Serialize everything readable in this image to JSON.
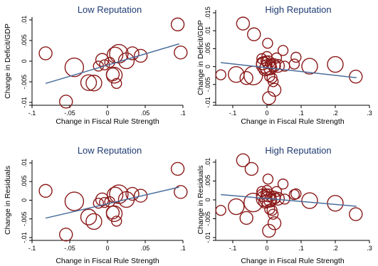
{
  "colors": {
    "title": "#1f3b73",
    "bubble": "#8b1a1a",
    "fit_line": "#4a6f9c",
    "axis": "#000000"
  },
  "chart_data": [
    {
      "type": "scatter",
      "title": "Low Reputation",
      "xlabel": "Change in Fiscal Rule Strength",
      "ylabel": "Change in Deficit/GDP",
      "xlim": [
        -0.1,
        0.1
      ],
      "ylim": [
        -0.01,
        0.01
      ],
      "xticks": [
        -0.1,
        -0.05,
        0,
        0.05,
        0.1
      ],
      "xtick_labels": [
        "-.1",
        "-.05",
        "0",
        ".05",
        ".1"
      ],
      "yticks": [
        -0.01,
        -0.005,
        0,
        0.005,
        0.01
      ],
      "ytick_labels": [
        "-.01",
        "-.005",
        "0",
        ".005",
        ".01"
      ],
      "fit_line": {
        "x": [
          -0.082,
          0.095
        ],
        "y": [
          -0.0054,
          0.0042
        ]
      },
      "points": [
        {
          "x": -0.082,
          "y": 0.0019,
          "size": 3
        },
        {
          "x": -0.055,
          "y": -0.0098,
          "size": 3
        },
        {
          "x": -0.044,
          "y": -0.0015,
          "size": 5
        },
        {
          "x": -0.025,
          "y": -0.0052,
          "size": 4
        },
        {
          "x": -0.018,
          "y": -0.0053,
          "size": 4
        },
        {
          "x": -0.012,
          "y": -0.0012,
          "size": 2
        },
        {
          "x": -0.007,
          "y": 0.0003,
          "size": 3
        },
        {
          "x": -0.004,
          "y": -0.0009,
          "size": 2
        },
        {
          "x": 0.003,
          "y": -0.0003,
          "size": 2
        },
        {
          "x": 0.007,
          "y": -0.0032,
          "size": 3
        },
        {
          "x": 0.009,
          "y": -0.0034,
          "size": 4
        },
        {
          "x": 0.01,
          "y": 0.0015,
          "size": 4
        },
        {
          "x": 0.015,
          "y": 0.0018,
          "size": 5
        },
        {
          "x": 0.012,
          "y": -0.0054,
          "size": 2
        },
        {
          "x": 0.025,
          "y": 0.0001,
          "size": 4
        },
        {
          "x": 0.033,
          "y": 0.0019,
          "size": 3
        },
        {
          "x": 0.044,
          "y": 0.0013,
          "size": 3
        },
        {
          "x": 0.093,
          "y": 0.0089,
          "size": 3
        },
        {
          "x": 0.097,
          "y": 0.0021,
          "size": 3
        }
      ]
    },
    {
      "type": "scatter",
      "title": "High Reputation",
      "xlabel": "Change in Fiscal Rule Strength",
      "ylabel": "Change in Deficit/GDP",
      "xlim": [
        -0.15,
        0.3
      ],
      "ylim": [
        -0.01,
        0.015
      ],
      "xticks": [
        -0.1,
        0,
        0.1,
        0.2,
        0.3
      ],
      "xtick_labels": [
        "-.1",
        "0",
        ".1",
        ".2",
        ".3"
      ],
      "yticks": [
        -0.01,
        -0.005,
        0,
        0.005,
        0.01,
        0.015
      ],
      "ytick_labels": [
        "-.01",
        "-.005",
        "0",
        ".005",
        ".01",
        ".015"
      ],
      "fit_line": {
        "x": [
          -0.135,
          0.262
        ],
        "y": [
          0.0011,
          -0.0031
        ]
      },
      "points": [
        {
          "x": -0.135,
          "y": -0.0023,
          "size": 2
        },
        {
          "x": -0.09,
          "y": -0.0022,
          "size": 4
        },
        {
          "x": -0.07,
          "y": 0.012,
          "size": 3
        },
        {
          "x": -0.06,
          "y": -0.0032,
          "size": 3
        },
        {
          "x": -0.04,
          "y": -0.0025,
          "size": 5
        },
        {
          "x": -0.038,
          "y": 0.009,
          "size": 3
        },
        {
          "x": -0.015,
          "y": 0.0022,
          "size": 2
        },
        {
          "x": -0.012,
          "y": 0.0009,
          "size": 3
        },
        {
          "x": -0.008,
          "y": 0.0004,
          "size": 4
        },
        {
          "x": -0.005,
          "y": -0.0008,
          "size": 3
        },
        {
          "x": -0.003,
          "y": 0.0016,
          "size": 2
        },
        {
          "x": 0.0,
          "y": 0.0028,
          "size": 2
        },
        {
          "x": 0.002,
          "y": 0.0065,
          "size": 2
        },
        {
          "x": 0.003,
          "y": -0.0002,
          "size": 4
        },
        {
          "x": 0.004,
          "y": 0.0012,
          "size": 3
        },
        {
          "x": 0.006,
          "y": -0.0088,
          "size": 3
        },
        {
          "x": 0.008,
          "y": -0.0028,
          "size": 2
        },
        {
          "x": 0.01,
          "y": -0.0005,
          "size": 3
        },
        {
          "x": 0.012,
          "y": 0.0007,
          "size": 2
        },
        {
          "x": 0.015,
          "y": -0.0032,
          "size": 2
        },
        {
          "x": 0.018,
          "y": -0.0042,
          "size": 2
        },
        {
          "x": 0.02,
          "y": 0.0004,
          "size": 3
        },
        {
          "x": 0.022,
          "y": -0.0065,
          "size": 3
        },
        {
          "x": 0.025,
          "y": 0.0002,
          "size": 2
        },
        {
          "x": 0.028,
          "y": 0.0024,
          "size": 2
        },
        {
          "x": 0.032,
          "y": 0.0002,
          "size": 3
        },
        {
          "x": 0.047,
          "y": 0.0045,
          "size": 2
        },
        {
          "x": 0.052,
          "y": 0.0001,
          "size": 2
        },
        {
          "x": 0.08,
          "y": 0.0007,
          "size": 2
        },
        {
          "x": 0.085,
          "y": 0.0026,
          "size": 2
        },
        {
          "x": 0.125,
          "y": 0.0001,
          "size": 4
        },
        {
          "x": 0.2,
          "y": 0.0006,
          "size": 4
        },
        {
          "x": 0.26,
          "y": -0.0028,
          "size": 3
        }
      ]
    },
    {
      "type": "scatter",
      "title": "Low Reputation",
      "xlabel": "Change in Fiscal Rule Strength",
      "ylabel": "Change in Residuals",
      "xlim": [
        -0.1,
        0.1
      ],
      "ylim": [
        -0.01,
        0.01
      ],
      "xticks": [
        -0.1,
        -0.05,
        0,
        0.05,
        0.1
      ],
      "xtick_labels": [
        "-.1",
        "-.05",
        "0",
        ".05",
        ".1"
      ],
      "yticks": [
        -0.01,
        -0.005,
        0,
        0.005,
        0.01
      ],
      "ytick_labels": [
        "-.01",
        "-.005",
        "0",
        ".005",
        ".01"
      ],
      "fit_line": {
        "x": [
          -0.082,
          0.095
        ],
        "y": [
          -0.0048,
          0.0035
        ]
      },
      "points": [
        {
          "x": -0.082,
          "y": 0.0025,
          "size": 3
        },
        {
          "x": -0.055,
          "y": -0.0092,
          "size": 3
        },
        {
          "x": -0.044,
          "y": -0.0003,
          "size": 5
        },
        {
          "x": -0.025,
          "y": -0.0045,
          "size": 4
        },
        {
          "x": -0.018,
          "y": -0.0057,
          "size": 4
        },
        {
          "x": -0.012,
          "y": -0.0008,
          "size": 2
        },
        {
          "x": -0.007,
          "y": 0.0002,
          "size": 3
        },
        {
          "x": -0.004,
          "y": -0.0006,
          "size": 2
        },
        {
          "x": 0.003,
          "y": -0.0004,
          "size": 2
        },
        {
          "x": 0.007,
          "y": -0.0033,
          "size": 3
        },
        {
          "x": 0.009,
          "y": -0.0036,
          "size": 4
        },
        {
          "x": 0.01,
          "y": 0.0014,
          "size": 4
        },
        {
          "x": 0.015,
          "y": 0.0016,
          "size": 5
        },
        {
          "x": 0.012,
          "y": -0.0056,
          "size": 2
        },
        {
          "x": 0.025,
          "y": 0.0002,
          "size": 4
        },
        {
          "x": 0.033,
          "y": 0.0017,
          "size": 3
        },
        {
          "x": 0.044,
          "y": 0.0012,
          "size": 3
        },
        {
          "x": 0.093,
          "y": 0.0084,
          "size": 3
        },
        {
          "x": 0.097,
          "y": 0.0022,
          "size": 3
        }
      ]
    },
    {
      "type": "scatter",
      "title": "High Reputation",
      "xlabel": "Change in Fiscal Rule Strength",
      "ylabel": "Change in Residuals",
      "xlim": [
        -0.15,
        0.3
      ],
      "ylim": [
        -0.01,
        0.01
      ],
      "xticks": [
        -0.1,
        0,
        0.1,
        0.2,
        0.3
      ],
      "xtick_labels": [
        "-.1",
        "0",
        ".1",
        ".2",
        ".3"
      ],
      "yticks": [
        -0.01,
        -0.005,
        0,
        0.005,
        0.01
      ],
      "ytick_labels": [
        "-.01",
        "-.005",
        "0",
        ".005",
        ".01"
      ],
      "fit_line": {
        "x": [
          -0.135,
          0.262
        ],
        "y": [
          0.0014,
          -0.0017
        ]
      },
      "points": [
        {
          "x": -0.135,
          "y": -0.0028,
          "size": 2
        },
        {
          "x": -0.09,
          "y": -0.0018,
          "size": 4
        },
        {
          "x": -0.07,
          "y": 0.0105,
          "size": 3
        },
        {
          "x": -0.06,
          "y": -0.0048,
          "size": 3
        },
        {
          "x": -0.04,
          "y": -0.0007,
          "size": 5
        },
        {
          "x": -0.045,
          "y": 0.0082,
          "size": 3
        },
        {
          "x": -0.015,
          "y": 0.0022,
          "size": 2
        },
        {
          "x": -0.012,
          "y": 0.0012,
          "size": 3
        },
        {
          "x": -0.008,
          "y": 0.0003,
          "size": 4
        },
        {
          "x": -0.005,
          "y": -0.0005,
          "size": 3
        },
        {
          "x": -0.003,
          "y": 0.0016,
          "size": 2
        },
        {
          "x": 0.0,
          "y": 0.0025,
          "size": 2
        },
        {
          "x": 0.003,
          "y": 0.0055,
          "size": 2
        },
        {
          "x": 0.003,
          "y": 0.0001,
          "size": 4
        },
        {
          "x": 0.004,
          "y": 0.0012,
          "size": 3
        },
        {
          "x": 0.006,
          "y": -0.0082,
          "size": 3
        },
        {
          "x": 0.008,
          "y": -0.0025,
          "size": 2
        },
        {
          "x": 0.01,
          "y": -0.0002,
          "size": 3
        },
        {
          "x": 0.012,
          "y": 0.0009,
          "size": 2
        },
        {
          "x": 0.015,
          "y": -0.0028,
          "size": 2
        },
        {
          "x": 0.018,
          "y": -0.0038,
          "size": 2
        },
        {
          "x": 0.02,
          "y": 0.0006,
          "size": 3
        },
        {
          "x": 0.022,
          "y": -0.0062,
          "size": 3
        },
        {
          "x": 0.025,
          "y": 0.0004,
          "size": 2
        },
        {
          "x": 0.028,
          "y": 0.0022,
          "size": 2
        },
        {
          "x": 0.032,
          "y": 0.0003,
          "size": 3
        },
        {
          "x": 0.047,
          "y": 0.0042,
          "size": 2
        },
        {
          "x": 0.052,
          "y": 0.0002,
          "size": 2
        },
        {
          "x": 0.08,
          "y": 0.0014,
          "size": 2
        },
        {
          "x": 0.085,
          "y": 0.0016,
          "size": 2
        },
        {
          "x": 0.125,
          "y": -0.0002,
          "size": 4
        },
        {
          "x": 0.2,
          "y": -0.0009,
          "size": 4
        },
        {
          "x": 0.26,
          "y": -0.0038,
          "size": 3
        }
      ]
    }
  ]
}
